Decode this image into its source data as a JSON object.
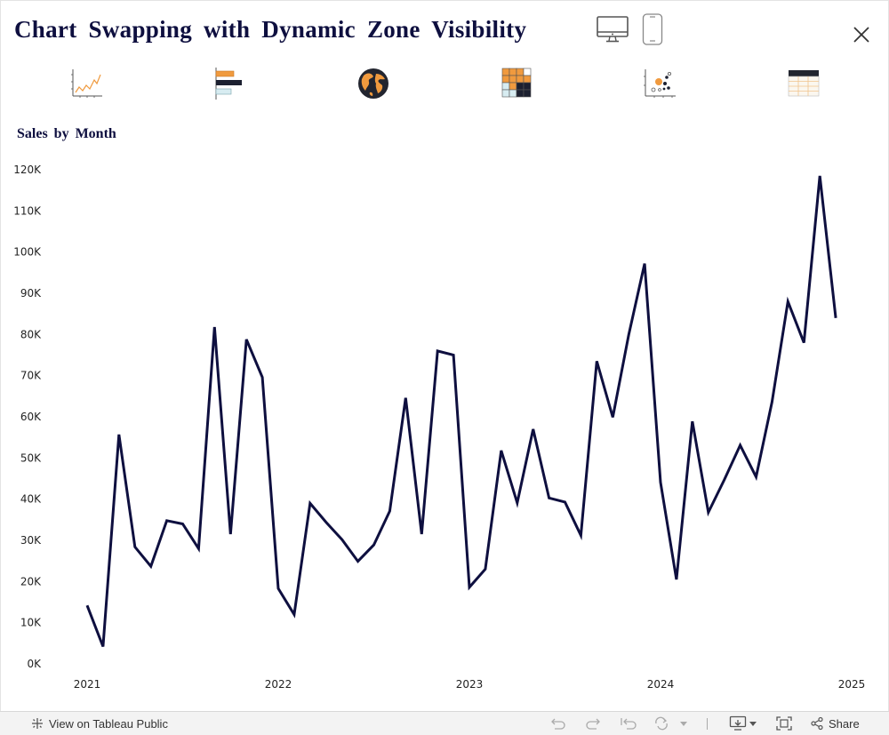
{
  "header": {
    "title": "Chart Swapping with Dynamic Zone Visibility"
  },
  "device_toggle": {
    "options": [
      "desktop-icon",
      "phone-icon"
    ]
  },
  "chart_selector": {
    "icons": [
      "line-chart-icon",
      "bar-chart-icon",
      "map-icon",
      "heatmap-icon",
      "scatter-icon",
      "table-icon"
    ]
  },
  "colors": {
    "title": "#0e0f3f",
    "line": "#0e0f3f",
    "accent_orange": "#f09a3e",
    "light_blue": "#d7ecf1"
  },
  "chart_data": {
    "type": "line",
    "title": "Sales by Month",
    "xlabel": "",
    "ylabel": "",
    "ylim": [
      0,
      120000
    ],
    "y_ticks": [
      "0K",
      "10K",
      "20K",
      "30K",
      "40K",
      "50K",
      "60K",
      "70K",
      "80K",
      "90K",
      "100K",
      "110K",
      "120K"
    ],
    "x_ticks": [
      "2021",
      "2022",
      "2023",
      "2024",
      "2025"
    ],
    "x": [
      "2021-01",
      "2021-02",
      "2021-03",
      "2021-04",
      "2021-05",
      "2021-06",
      "2021-07",
      "2021-08",
      "2021-09",
      "2021-10",
      "2021-11",
      "2021-12",
      "2022-01",
      "2022-02",
      "2022-03",
      "2022-04",
      "2022-05",
      "2022-06",
      "2022-07",
      "2022-08",
      "2022-09",
      "2022-10",
      "2022-11",
      "2022-12",
      "2023-01",
      "2023-02",
      "2023-03",
      "2023-04",
      "2023-05",
      "2023-06",
      "2023-07",
      "2023-08",
      "2023-09",
      "2023-10",
      "2023-11",
      "2023-12",
      "2024-01",
      "2024-02",
      "2024-03",
      "2024-04",
      "2024-05",
      "2024-06",
      "2024-07",
      "2024-08",
      "2024-09",
      "2024-10",
      "2024-11",
      "2024-12"
    ],
    "series": [
      {
        "values": [
          14200,
          4200,
          55700,
          28400,
          23700,
          34800,
          34000,
          28000,
          81800,
          31500,
          78800,
          69600,
          18300,
          12000,
          39000,
          34400,
          30200,
          24900,
          28900,
          37100,
          64600,
          31500,
          76000,
          75000,
          18600,
          23000,
          51800,
          39100,
          57000,
          40300,
          39300,
          31200,
          73500,
          59900,
          79900,
          97200,
          44100,
          20500,
          58900,
          36800,
          44700,
          53100,
          45400,
          63600,
          88000,
          78000,
          118500,
          84000
        ]
      }
    ]
  },
  "footer": {
    "view_label": "View on Tableau Public",
    "share_label": "Share"
  }
}
